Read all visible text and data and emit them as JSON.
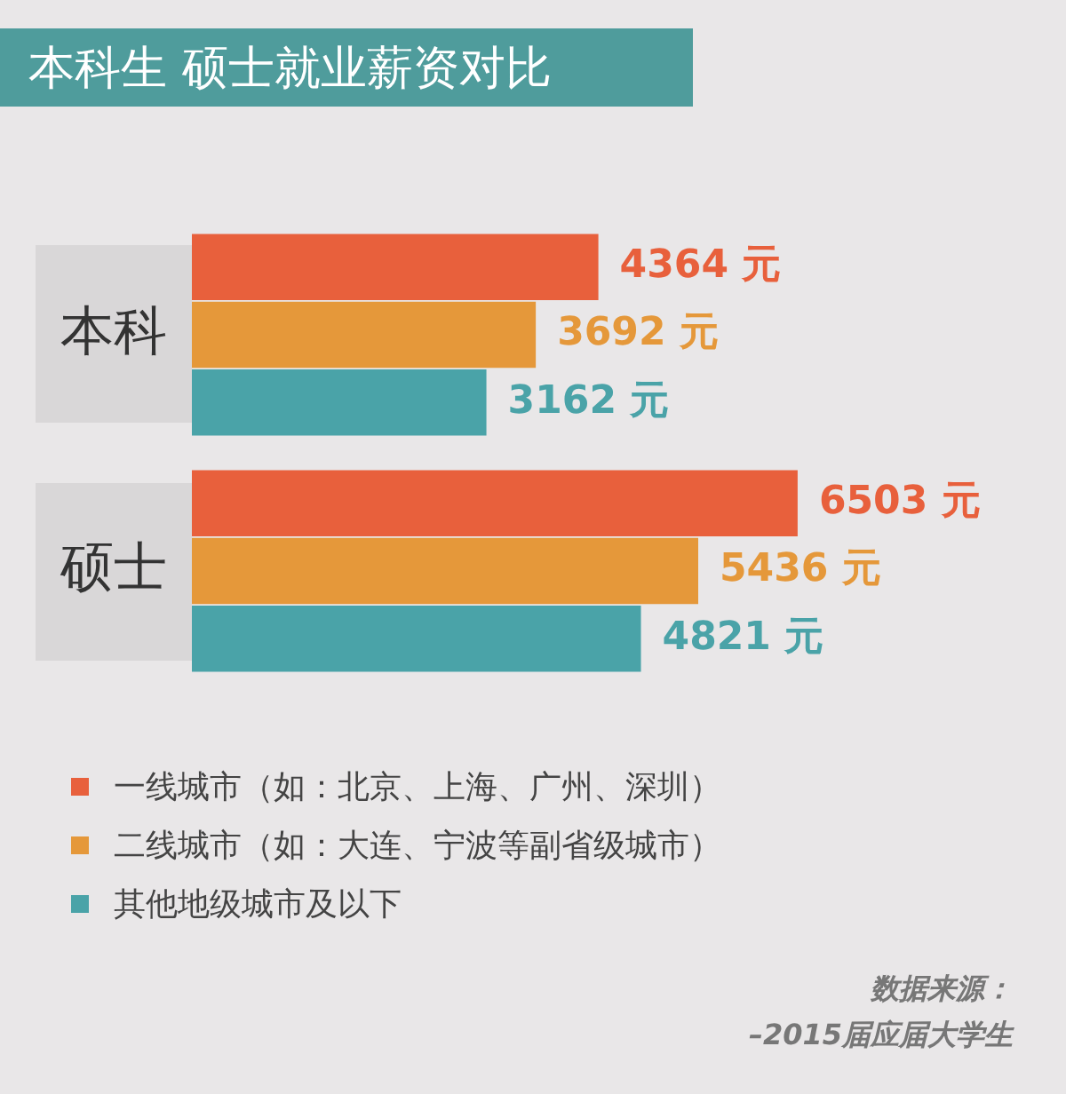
{
  "chart_data": {
    "type": "bar",
    "orientation": "horizontal",
    "title": "本科生 硕士就业薪资对比",
    "categories": [
      "本科",
      "硕士"
    ],
    "series": [
      {
        "name": "一线城市（如：北京、上海、广州、深圳）",
        "color": "#e8603c",
        "values": [
          4364,
          6503
        ],
        "value_labels": [
          "4364 元",
          "6503 元"
        ]
      },
      {
        "name": "二线城市（如：大连、宁波等副省级城市）",
        "color": "#e5983a",
        "values": [
          3692,
          5436
        ],
        "value_labels": [
          "3692 元",
          "5436 元"
        ]
      },
      {
        "name": "其他地级城市及以下",
        "color": "#4aa3a8",
        "values": [
          3162,
          4821
        ],
        "value_labels": [
          "3162 元",
          "4821 元"
        ]
      }
    ],
    "legend": "bottom left",
    "grid": false,
    "tick_labels": "y",
    "annotations": [
      "数据来源：",
      "–2015届应届大学生"
    ]
  }
}
